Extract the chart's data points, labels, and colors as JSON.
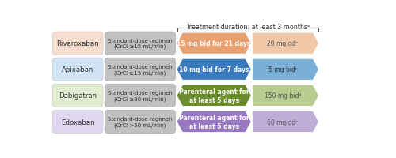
{
  "title": "Treatment duration: at least 3 monthsᵃ",
  "rows": [
    {
      "drug": "Rivaroxaban",
      "drug_bg": "#f5ddd0",
      "regimen": "Standard-dose regimen\n(CrCl ≥15 mL/min)",
      "arrow1_text": "15 mg bid for 21 days",
      "arrow1_color": "#e8a070",
      "arrow1_text_color": "#ffffff",
      "arrow2_text": "20 mg odᵇ",
      "arrow2_color": "#f0c8a8",
      "arrow2_text_color": "#555555"
    },
    {
      "drug": "Apixaban",
      "drug_bg": "#d0e4f5",
      "regimen": "Standard-dose regimen\n(CrCl ≥15 mL/min)",
      "arrow1_text": "10 mg bid for 7 days",
      "arrow1_color": "#3a7abf",
      "arrow1_text_color": "#ffffff",
      "arrow2_text": "5 mg bidᶜ",
      "arrow2_color": "#7ab0d8",
      "arrow2_text_color": "#333333"
    },
    {
      "drug": "Dabigatran",
      "drug_bg": "#e0ecd0",
      "regimen": "Standard-dose regimen\n(CrCl ≥30 mL/min)",
      "arrow1_text": "Parenteral agent for\nat least 5 days",
      "arrow1_color": "#6a8c2a",
      "arrow1_text_color": "#ffffff",
      "arrow2_text": "150 mg bidᵈ",
      "arrow2_color": "#b8cc90",
      "arrow2_text_color": "#555555"
    },
    {
      "drug": "Edoxaban",
      "drug_bg": "#e0d8f0",
      "regimen": "Standard-dose regimen\n(CrCl >50 mL/min)",
      "arrow1_text": "Parenteral agent for\nat least 5 days",
      "arrow1_color": "#9878c0",
      "arrow1_text_color": "#ffffff",
      "arrow2_text": "60 mg odᵉ",
      "arrow2_color": "#c0acd8",
      "arrow2_text_color": "#555555"
    }
  ],
  "regimen_bg": "#c0c0c0",
  "bg_color": "#ffffff"
}
